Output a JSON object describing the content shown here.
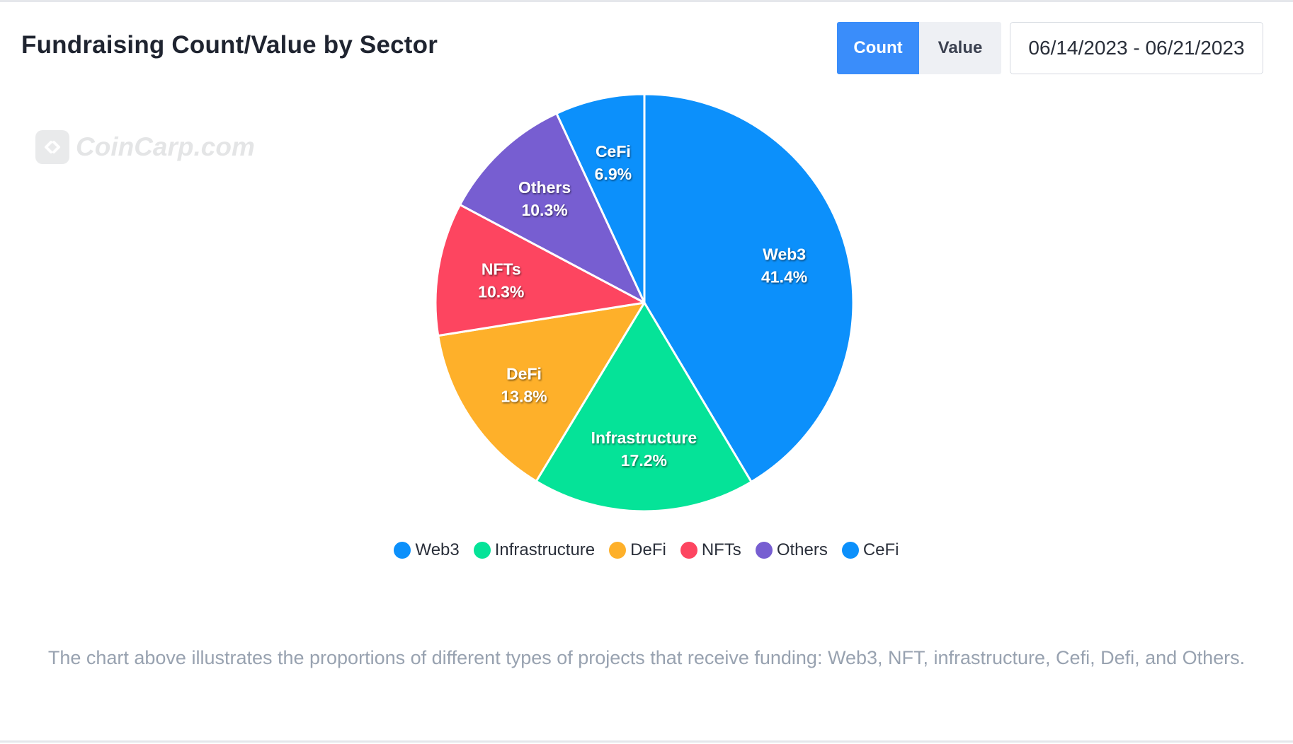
{
  "header": {
    "title": "Fundraising Count/Value by Sector",
    "toggle": {
      "count_label": "Count",
      "value_label": "Value",
      "active": "Count"
    },
    "date_range": "06/14/2023 - 06/21/2023"
  },
  "watermark": {
    "text": "CoinCarp.com"
  },
  "chart_data": {
    "type": "pie",
    "title": "",
    "start": "12 o'clock, clockwise",
    "slices": [
      {
        "label": "Web3",
        "value": 41.4,
        "display": "41.4%",
        "color": "#0c90fb"
      },
      {
        "label": "Infrastructure",
        "value": 17.2,
        "display": "17.2%",
        "color": "#05e398"
      },
      {
        "label": "DeFi",
        "value": 13.8,
        "display": "13.8%",
        "color": "#feb02a"
      },
      {
        "label": "NFTs",
        "value": 10.3,
        "display": "10.3%",
        "color": "#fd4560"
      },
      {
        "label": "Others",
        "value": 10.3,
        "display": "10.3%",
        "color": "#775ed1"
      },
      {
        "label": "CeFi",
        "value": 6.9,
        "display": "6.9%",
        "color": "#0c90fb"
      }
    ],
    "legend_position": "bottom-center"
  },
  "legend": {
    "items": [
      {
        "label": "Web3",
        "color": "#0c90fb"
      },
      {
        "label": "Infrastructure",
        "color": "#05e398"
      },
      {
        "label": "DeFi",
        "color": "#feb02a"
      },
      {
        "label": "NFTs",
        "color": "#fd4560"
      },
      {
        "label": "Others",
        "color": "#775ed1"
      },
      {
        "label": "CeFi",
        "color": "#0c90fb"
      }
    ]
  },
  "caption": "The chart above illustrates the proportions of different types of projects that receive funding: Web3, NFT, infrastructure, Cefi, Defi, and Others."
}
